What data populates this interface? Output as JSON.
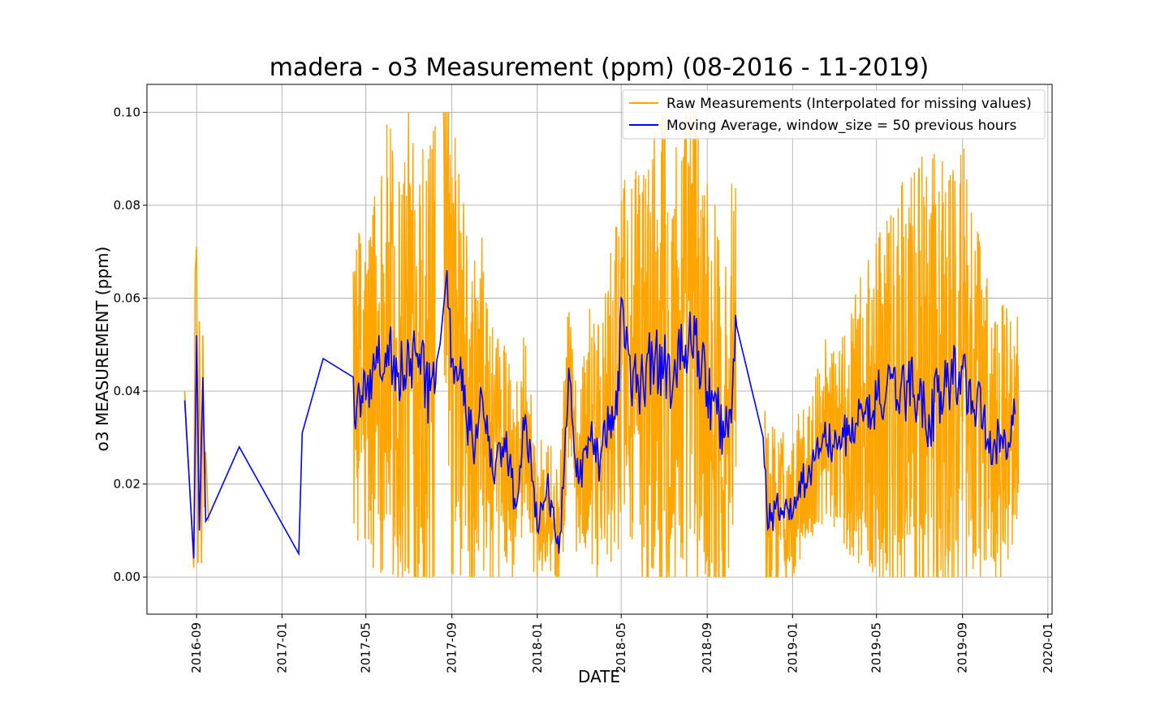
{
  "chart_data": {
    "type": "line",
    "title": "madera - o3 Measurement (ppm) (08-2016 - 11-2019)",
    "xlabel": "DATE",
    "ylabel": "o3 MEASUREMENT (ppm)",
    "x_type": "date",
    "xlim": [
      "2016-06-22",
      "2020-01-07"
    ],
    "ylim": [
      -0.008,
      0.106
    ],
    "x_ticks": [
      "2016-09",
      "2017-01",
      "2017-05",
      "2017-09",
      "2018-01",
      "2018-05",
      "2018-09",
      "2019-01",
      "2019-05",
      "2019-09",
      "2020-01"
    ],
    "x_tick_dates": [
      "2016-09-01",
      "2017-01-01",
      "2017-05-01",
      "2017-09-01",
      "2018-01-01",
      "2018-05-01",
      "2018-09-01",
      "2019-01-01",
      "2019-05-01",
      "2019-09-01",
      "2020-01-01"
    ],
    "y_ticks": [
      "0.00",
      "0.02",
      "0.04",
      "0.06",
      "0.08",
      "0.10"
    ],
    "y_tick_values": [
      0.0,
      0.02,
      0.04,
      0.06,
      0.08,
      0.1
    ],
    "grid": true,
    "legend_position": "top-right",
    "series": [
      {
        "name": "Raw Measurements (Interpolated for missing values)",
        "color": "#ffa500",
        "style": "dense noisy trace around the moving average; envelope rises to about 0.09-0.10 in summers and narrows to about 0.00-0.035 in winters",
        "peak_values": [
          0.071,
          0.098,
          0.101,
          0.098,
          0.09
        ],
        "min_value": -0.003
      },
      {
        "name": "Moving Average, window_size = 50 previous hours",
        "color": "#0000ff",
        "x": [
          "2016-08-15",
          "2016-08-28",
          "2016-09-01",
          "2016-09-05",
          "2016-09-10",
          "2016-09-14",
          "2016-09-18",
          "2016-11-01",
          "2017-01-25",
          "2017-01-30",
          "2017-03-01",
          "2017-04-13",
          "2017-04-15",
          "2017-04-22",
          "2017-05-01",
          "2017-05-15",
          "2017-06-01",
          "2017-06-15",
          "2017-07-01",
          "2017-07-15",
          "2017-08-01",
          "2017-08-15",
          "2017-08-25",
          "2017-09-01",
          "2017-09-15",
          "2017-10-01",
          "2017-10-15",
          "2017-11-01",
          "2017-11-15",
          "2017-12-01",
          "2017-12-15",
          "2018-01-01",
          "2018-01-15",
          "2018-02-01",
          "2018-02-15",
          "2018-03-01",
          "2018-03-15",
          "2018-04-01",
          "2018-04-15",
          "2018-04-28",
          "2018-05-01",
          "2018-05-15",
          "2018-06-01",
          "2018-06-15",
          "2018-07-01",
          "2018-07-15",
          "2018-08-01",
          "2018-08-15",
          "2018-09-01",
          "2018-09-15",
          "2018-10-01",
          "2018-10-13",
          "2018-11-20",
          "2018-11-25",
          "2018-12-01",
          "2018-12-15",
          "2019-01-01",
          "2019-01-15",
          "2019-02-01",
          "2019-02-15",
          "2019-03-01",
          "2019-03-15",
          "2019-04-01",
          "2019-04-15",
          "2019-05-01",
          "2019-05-15",
          "2019-06-01",
          "2019-06-15",
          "2019-07-01",
          "2019-07-15",
          "2019-08-01",
          "2019-08-15",
          "2019-09-01",
          "2019-09-15",
          "2019-10-01",
          "2019-10-15",
          "2019-11-01",
          "2019-11-15"
        ],
        "values": [
          0.038,
          0.004,
          0.052,
          0.01,
          0.043,
          0.012,
          0.013,
          0.028,
          0.005,
          0.031,
          0.047,
          0.043,
          0.033,
          0.04,
          0.038,
          0.045,
          0.05,
          0.043,
          0.05,
          0.045,
          0.04,
          0.05,
          0.066,
          0.047,
          0.04,
          0.028,
          0.038,
          0.02,
          0.03,
          0.015,
          0.035,
          0.01,
          0.02,
          0.005,
          0.045,
          0.02,
          0.03,
          0.025,
          0.035,
          0.04,
          0.06,
          0.04,
          0.043,
          0.047,
          0.045,
          0.043,
          0.05,
          0.052,
          0.04,
          0.035,
          0.03,
          0.054,
          0.03,
          0.015,
          0.012,
          0.015,
          0.013,
          0.02,
          0.025,
          0.03,
          0.028,
          0.03,
          0.033,
          0.035,
          0.038,
          0.04,
          0.037,
          0.042,
          0.038,
          0.035,
          0.04,
          0.042,
          0.045,
          0.038,
          0.035,
          0.028,
          0.03,
          0.035
        ]
      }
    ]
  }
}
